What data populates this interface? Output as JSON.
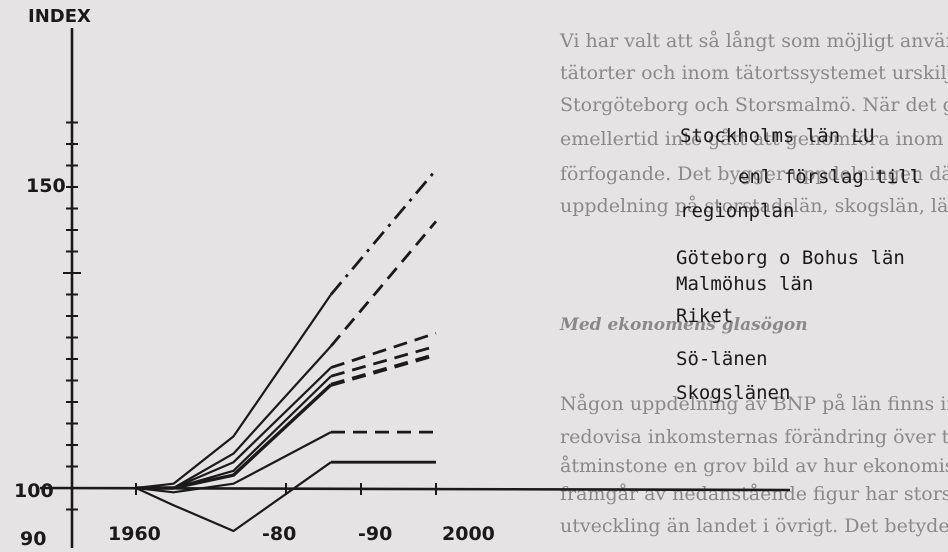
{
  "background_text": {
    "lines": [
      "Vi har valt att så långt som möjligt använda en indelning i glesbygd",
      "tätorter och inom tätortssystemet urskilja Storstockholm, övriga",
      "Storgöteborg och Storsmalmö. När det gäller ekonomin har",
      "emellertid inte gått att genomföra inom den tid som stått",
      "förfogande. Det bygger uppdelningen därför på län med en sund",
      "uppdelning på storstadslän, skogslän, län i sydöstra Sverige och övrig"
    ],
    "heading": "Med ekonomens glasögon",
    "lines2": [
      "Någon uppdelning av BNP på län finns inte. Däremot är det möjligt",
      "redovisa inkomsternas förändring över tiden fördelat på län. Det",
      "åtminstone en grov bild av hur ekonomisk utveckling delat sig. S",
      "framgår av nedanstående figur har storstadslänen haft en större re",
      "utveckling än landet i övrigt. Det betyder att den avsevärda skillna"
    ]
  },
  "colors": {
    "ink": "#1a1a1a",
    "paper": "#e6e3e4",
    "bg_text": "#8a8889"
  },
  "chart_data": {
    "type": "line",
    "ylabel": "INDEX",
    "xlabel": "",
    "x_ticks": [
      "1960",
      "-80",
      "-90",
      "2000"
    ],
    "y_ticks": [
      "150",
      "100",
      "90"
    ],
    "ylim": [
      88,
      195
    ],
    "xlim": [
      1950,
      2010
    ],
    "grid": false,
    "legend": "inline-right",
    "series": [
      {
        "name": "Stockholms län LU enl förslag till regionplan",
        "style": "dash-dot",
        "x": [
          1960,
          1965,
          1973,
          1986,
          2000
        ],
        "y": [
          100,
          101,
          112,
          145,
          174
        ]
      },
      {
        "name": "Stockholms län LU enl förslag till regionplan",
        "style": "dashed",
        "x": [
          1960,
          1965,
          1973,
          1986,
          2000
        ],
        "y": [
          100,
          100,
          108,
          133,
          162
        ]
      },
      {
        "name": "Göteborg o Bohus län",
        "style": "dashed",
        "x": [
          1960,
          1965,
          1973,
          1986,
          2000
        ],
        "y": [
          100,
          100,
          106,
          128,
          136
        ]
      },
      {
        "name": "Malmöhus län",
        "style": "dashed",
        "x": [
          1960,
          1965,
          1973,
          1986,
          2000
        ],
        "y": [
          100,
          100,
          104,
          126,
          133
        ]
      },
      {
        "name": "Riket",
        "style": "dashed",
        "x": [
          1960,
          1965,
          1973,
          1986,
          2000
        ],
        "y": [
          100,
          100,
          103,
          124,
          131
        ]
      },
      {
        "name": "Sö-länen",
        "style": "dashed",
        "x": [
          1960,
          1965,
          1973,
          1986,
          2000
        ],
        "y": [
          100,
          99,
          101,
          113,
          113
        ]
      },
      {
        "name": "Skogslänen",
        "style": "solid",
        "x": [
          1960,
          1965,
          1973,
          1986,
          2000
        ],
        "y": [
          100,
          96,
          90,
          106,
          106
        ]
      }
    ],
    "legend_labels": [
      "Stockholms län LU",
      "enl förslag till",
      "regionplan",
      "Göteborg o Bohus län",
      "Malmöhus län",
      "Riket",
      "Sö-länen",
      "Skogslänen"
    ]
  }
}
